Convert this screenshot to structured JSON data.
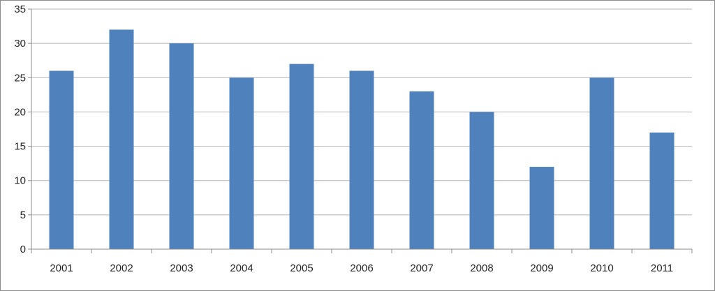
{
  "chart_data": {
    "type": "bar",
    "categories": [
      "2001",
      "2002",
      "2003",
      "2004",
      "2005",
      "2006",
      "2007",
      "2008",
      "2009",
      "2010",
      "2011"
    ],
    "values": [
      26,
      32,
      30,
      25,
      27,
      26,
      23,
      20,
      12,
      25,
      17
    ],
    "title": "",
    "xlabel": "",
    "ylabel": "",
    "ylim": [
      0,
      35
    ],
    "yticks": [
      "0",
      "5",
      "10",
      "15",
      "20",
      "25",
      "30",
      "35"
    ],
    "grid": true,
    "legend": "none",
    "colors": {
      "bar": "#4f81bd",
      "grid": "#b3b3b3",
      "axis": "#8c8c8c",
      "text": "#262626"
    }
  }
}
